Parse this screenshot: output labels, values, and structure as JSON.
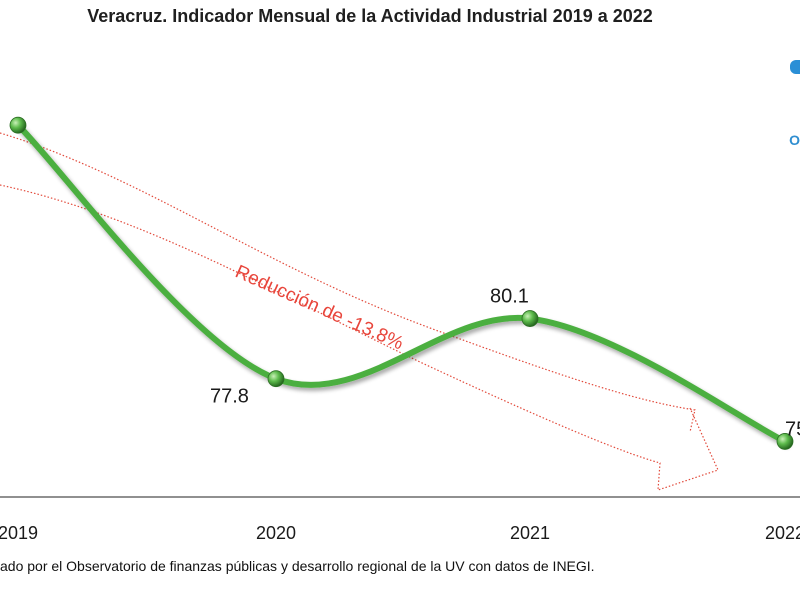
{
  "title": "Veracruz. Indicador Mensual de la Actividad Industrial 2019 a 2022",
  "source": "ado por el Observatorio de finanzas públicas y desarrollo regional de la UV con datos de INEGI.",
  "annotation": "Reducción de -13.8%",
  "logo_text": "O",
  "colors": {
    "line": "#4caf3f",
    "marker": "#3d9a33",
    "arrow": "#e24a3b",
    "annotation": "#e8453b",
    "axis": "#333333"
  },
  "chart_data": {
    "type": "line",
    "title": "Veracruz. Indicador Mensual de la Actividad Industrial 2019 a 2022",
    "categories": [
      "2019",
      "2020",
      "2021",
      "2022"
    ],
    "values": [
      87.5,
      77.8,
      80.1,
      75.4
    ],
    "data_labels": [
      "",
      "77.8",
      "80.1",
      "75"
    ],
    "smooth": true,
    "grid": false,
    "legend": "none",
    "ylim": [
      74,
      89
    ]
  }
}
